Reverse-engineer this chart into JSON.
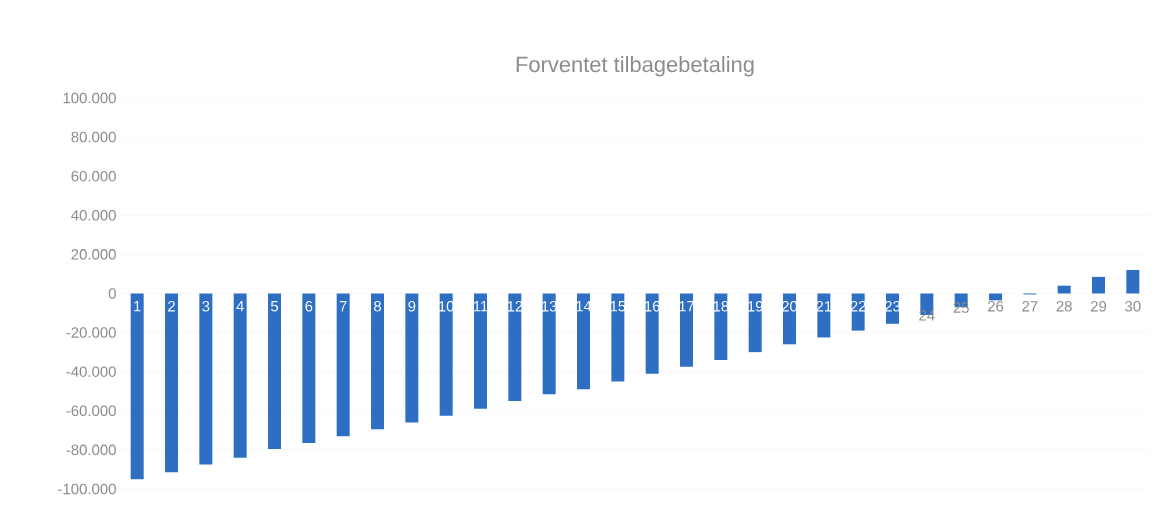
{
  "chart_data": {
    "type": "bar",
    "title": "Forventet tilbagebetaling",
    "categories": [
      "1",
      "2",
      "3",
      "4",
      "5",
      "6",
      "7",
      "8",
      "9",
      "10",
      "11",
      "12",
      "13",
      "14",
      "15",
      "16",
      "17",
      "18",
      "19",
      "20",
      "21",
      "22",
      "23",
      "24",
      "25",
      "26",
      "27",
      "28",
      "29",
      "30"
    ],
    "values": [
      -95000,
      -91500,
      -87500,
      -84000,
      -79500,
      -76500,
      -73000,
      -69500,
      -66000,
      -62500,
      -59000,
      -55000,
      -51500,
      -49000,
      -45000,
      -41000,
      -37500,
      -34000,
      -30000,
      -26000,
      -22500,
      -19000,
      -15500,
      -11000,
      -7000,
      -3500,
      -500,
      4000,
      8500,
      12000
    ],
    "color": "#2e6fc4",
    "ylim": [
      -100000,
      100000
    ],
    "yticks": [
      {
        "value": -100000,
        "label": "-100.000"
      },
      {
        "value": -80000,
        "label": "-80.000"
      },
      {
        "value": -60000,
        "label": "-60.000"
      },
      {
        "value": -40000,
        "label": "-40.000"
      },
      {
        "value": -20000,
        "label": "-20.000"
      },
      0,
      {
        "value": 20000,
        "label": "20.000"
      },
      {
        "value": 40000,
        "label": "40.000"
      },
      {
        "value": 60000,
        "label": "60.000"
      },
      {
        "value": 80000,
        "label": "80.000"
      },
      {
        "value": 100000,
        "label": "100.000"
      }
    ],
    "grid": "y"
  }
}
